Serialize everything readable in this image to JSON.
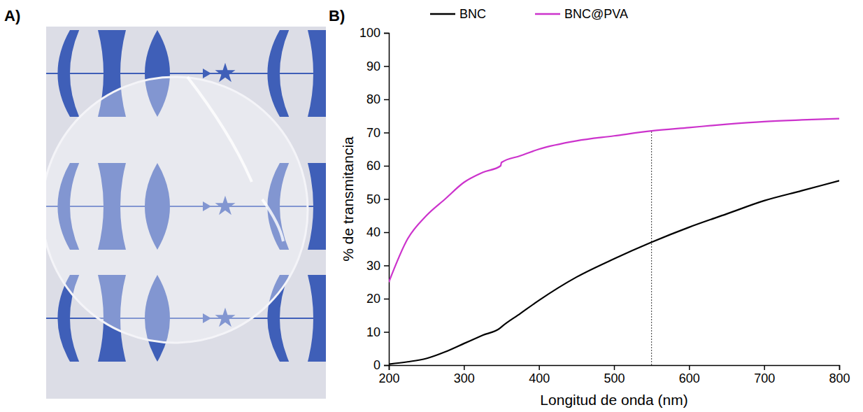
{
  "panel_labels": [
    "A)",
    "B)"
  ],
  "chart_data": {
    "type": "line",
    "x_label": "Longitud de onda (nm)",
    "y_label": "% de transmitancia",
    "x": [
      200,
      225,
      250,
      275,
      300,
      325,
      349,
      350,
      375,
      400,
      450,
      500,
      550,
      600,
      650,
      700,
      750,
      800
    ],
    "series": [
      {
        "name": "BNC",
        "color": "#000000",
        "values": [
          0.3,
          1,
          2,
          4,
          6.5,
          9,
          11.3,
          11.5,
          15.5,
          19.5,
          26.5,
          32,
          37,
          41.5,
          45.5,
          49.5,
          52.5,
          55.5
        ]
      },
      {
        "name": "BNC@PVA",
        "color": "#cc33cc",
        "values": [
          25,
          38,
          45,
          50,
          55,
          58,
          60,
          61,
          63,
          65,
          67.5,
          69,
          70.5,
          71.5,
          72.5,
          73.3,
          73.8,
          74.2
        ]
      }
    ],
    "xlim": [
      200,
      800
    ],
    "xticks": [
      200,
      300,
      400,
      500,
      600,
      700,
      800
    ],
    "ylim": [
      0,
      100
    ],
    "yticks": [
      0,
      10,
      20,
      30,
      40,
      50,
      60,
      70,
      80,
      90,
      100
    ],
    "reference_x": 550,
    "legend": "top",
    "grid": false
  }
}
